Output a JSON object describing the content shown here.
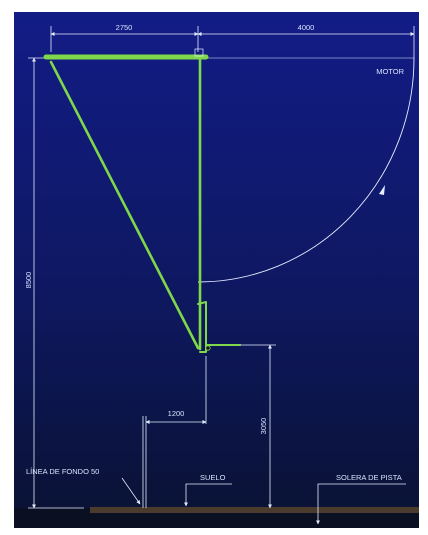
{
  "dimensions": {
    "top_left": "2750",
    "top_right": "4000",
    "height_total": "8500",
    "base_offset": "1200",
    "clearance": "3050"
  },
  "labels": {
    "motor": "MOTOR",
    "baseline": "LÍNEA DE FONDO 50",
    "floor": "SUELO",
    "court_floor": "SOLERA DE PISTA"
  },
  "colors": {
    "bg_top": "#101a7a",
    "bg_bottom": "#0b1436",
    "structure": "#7ed84a",
    "dim_line": "#e6eeff",
    "floor": "#4a3b2c"
  }
}
